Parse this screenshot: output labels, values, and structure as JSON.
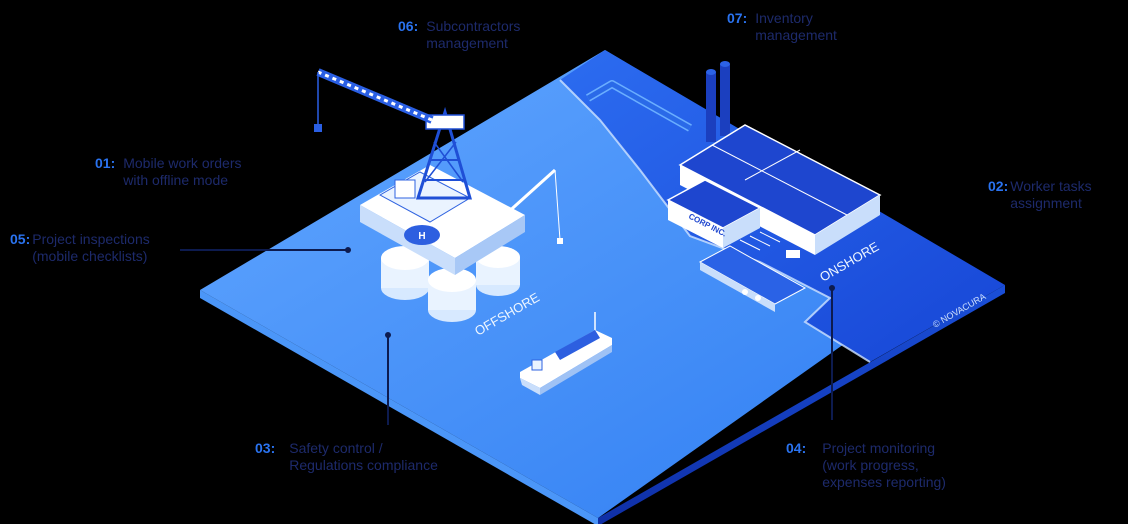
{
  "callouts": [
    {
      "id": "c01",
      "number": "01:",
      "line1": "Mobile work orders",
      "line2": "with offline mode"
    },
    {
      "id": "c02",
      "number": "02:",
      "line1": "Worker tasks",
      "line2": "assignment"
    },
    {
      "id": "c03",
      "number": "03:",
      "line1": "Safety control /",
      "line2": "Regulations compliance"
    },
    {
      "id": "c04",
      "number": "04:",
      "line1": "Project monitoring",
      "line2": "(work progress,",
      "line3": "expenses reporting)"
    },
    {
      "id": "c05",
      "number": "05:",
      "line1": "Project inspections",
      "line2": "(mobile checklists)"
    },
    {
      "id": "c06",
      "number": "06:",
      "line1": "Subcontractors",
      "line2": "management"
    },
    {
      "id": "c07",
      "number": "07:",
      "line1": "Inventory",
      "line2": "management"
    }
  ],
  "labels": {
    "onshore": "ONSHORE",
    "offshore": "OFFSHORE",
    "building_sign": "CORP INC.",
    "copyright": "© NOVACURA"
  },
  "colors": {
    "number_blue": "#2a73f0",
    "text_navy": "#1d2a6b",
    "water": "#3d8cf5",
    "land": "#1f5fe6",
    "background": "#000000"
  }
}
